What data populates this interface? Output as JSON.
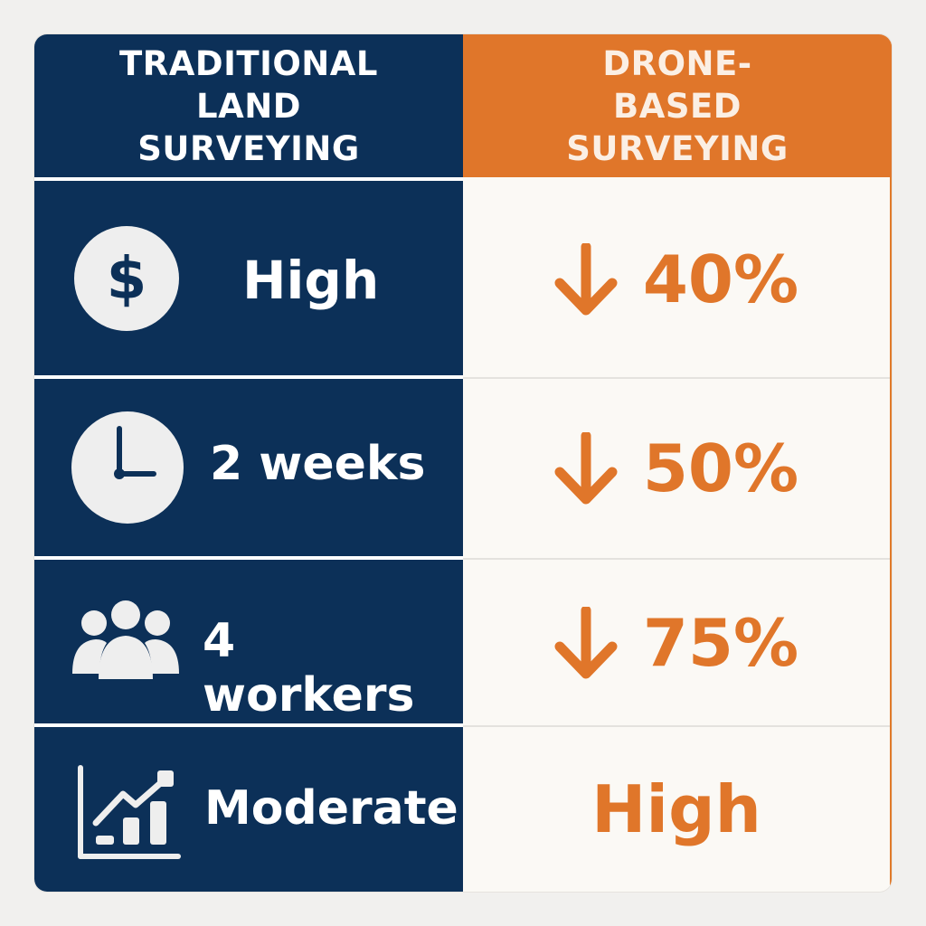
{
  "header": {
    "traditional": "TRADITIONAL LAND SURVEYING",
    "drone": "DRONE-BASED SURVEYING"
  },
  "colors": {
    "navy": "#0c3058",
    "orange": "#e0762a",
    "background": "#fbf9f5"
  },
  "rows": [
    {
      "icon": "dollar-icon",
      "traditional": "High",
      "drone_arrow": "down-arrow-icon",
      "drone": "40%"
    },
    {
      "icon": "clock-icon",
      "traditional": "2 weeks",
      "drone_arrow": "down-arrow-icon",
      "drone": "50%"
    },
    {
      "icon": "people-icon",
      "traditional": "4 workers",
      "drone_arrow": "down-arrow-icon",
      "drone": "75%"
    },
    {
      "icon": "growth-chart-icon",
      "traditional": "Moderate",
      "drone": "High"
    }
  ]
}
